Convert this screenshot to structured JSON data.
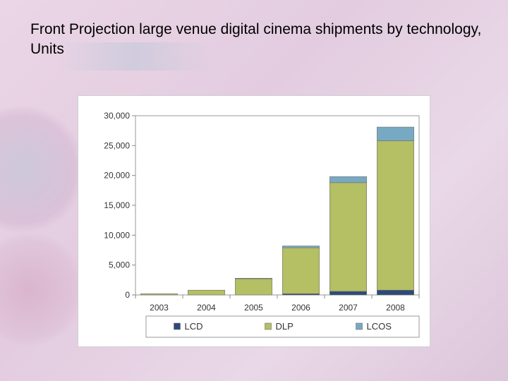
{
  "slide": {
    "title": "Front Projection large venue digital cinema shipments by technology, Units"
  },
  "chart_data": {
    "type": "bar",
    "stacked": true,
    "title": "",
    "xlabel": "",
    "ylabel": "",
    "categories": [
      "2003",
      "2004",
      "2005",
      "2006",
      "2007",
      "2008"
    ],
    "series": [
      {
        "name": "LCD",
        "color": "#2e4a7a",
        "values": [
          0,
          0,
          0,
          200,
          600,
          800
        ]
      },
      {
        "name": "DLP",
        "color": "#b5bf63",
        "values": [
          200,
          800,
          2700,
          7700,
          18200,
          25000
        ]
      },
      {
        "name": "LCOS",
        "color": "#78a9c3",
        "values": [
          0,
          0,
          100,
          300,
          1000,
          2300
        ]
      }
    ],
    "ylim": [
      0,
      30000
    ],
    "yticks": [
      "0",
      "5,000",
      "10,000",
      "15,000",
      "20,000",
      "25,000",
      "30,000"
    ],
    "ytick_values": [
      0,
      5000,
      10000,
      15000,
      20000,
      25000,
      30000
    ],
    "legend_position": "bottom",
    "grid": false
  }
}
